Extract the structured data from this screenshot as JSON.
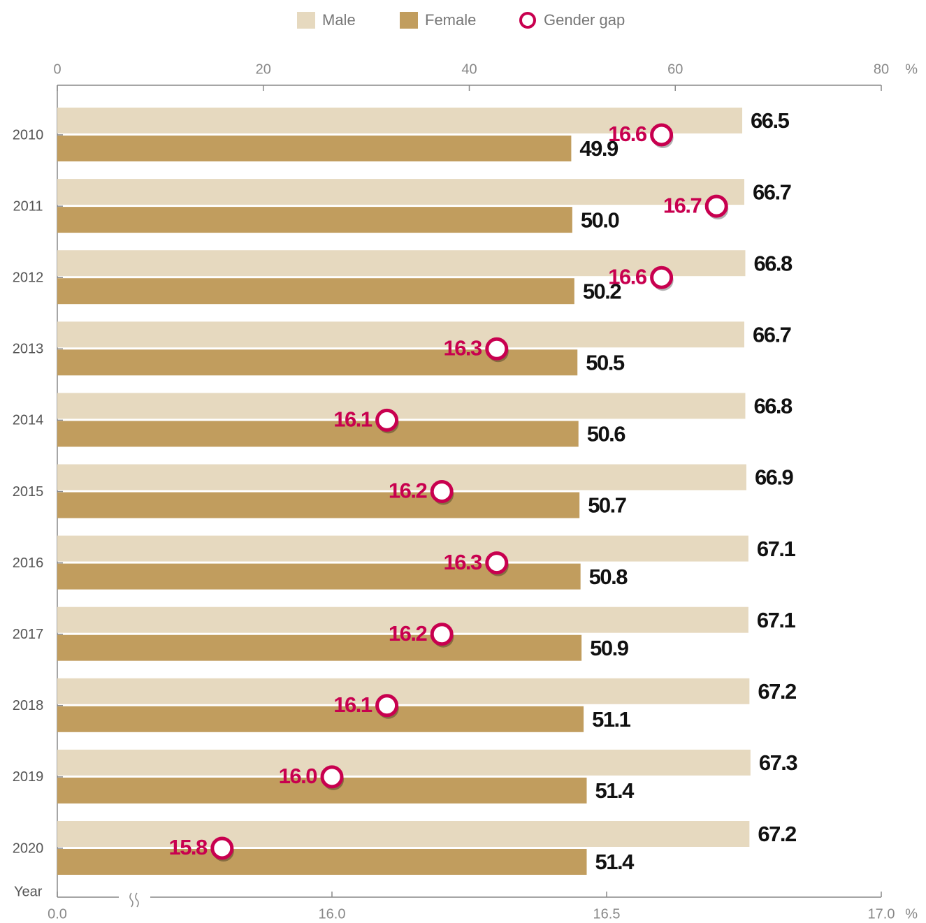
{
  "chart_data": {
    "type": "bar",
    "orientation": "horizontal",
    "categories": [
      "2010",
      "2011",
      "2012",
      "2013",
      "2014",
      "2015",
      "2016",
      "2017",
      "2018",
      "2019",
      "2020"
    ],
    "y_label": "Year",
    "series": [
      {
        "name": "Male",
        "color": "#e6d9bf",
        "axis": "x",
        "values": [
          66.5,
          66.7,
          66.8,
          66.7,
          66.8,
          66.9,
          67.1,
          67.1,
          67.2,
          67.3,
          67.2
        ],
        "value_labels": [
          "66.5",
          "66.7",
          "66.8",
          "66.7",
          "66.8",
          "66.9",
          "67.1",
          "67.1",
          "67.2",
          "67.3",
          "67.2"
        ]
      },
      {
        "name": "Female",
        "color": "#c19d5e",
        "axis": "x",
        "values": [
          49.9,
          50.0,
          50.2,
          50.5,
          50.6,
          50.7,
          50.8,
          50.9,
          51.1,
          51.4,
          51.4
        ],
        "value_labels": [
          "49.9",
          "50.0",
          "50.2",
          "50.5",
          "50.6",
          "50.7",
          "50.8",
          "50.9",
          "51.1",
          "51.4",
          "51.4"
        ]
      },
      {
        "name": "Gender gap",
        "color": "#c8004f",
        "axis": "x2",
        "marker": "circle",
        "values": [
          16.6,
          16.7,
          16.6,
          16.3,
          16.1,
          16.2,
          16.3,
          16.2,
          16.1,
          16.0,
          15.8
        ],
        "value_labels": [
          "16.6",
          "16.7",
          "16.6",
          "16.3",
          "16.1",
          "16.2",
          "16.3",
          "16.2",
          "16.1",
          "16.0",
          "15.8"
        ]
      }
    ],
    "xlim": [
      0,
      80
    ],
    "xticks": [
      0,
      20,
      40,
      60,
      80
    ],
    "x_unit": "%",
    "x2lim": [
      0,
      17
    ],
    "x2_break": [
      0,
      15.5
    ],
    "x2ticks": [
      {
        "value": 0,
        "label": "0.0"
      },
      {
        "value": 16,
        "label": "16.0"
      },
      {
        "value": 16.5,
        "label": "16.5"
      },
      {
        "value": 17,
        "label": "17.0"
      }
    ],
    "x2_unit": "%",
    "legend": "top"
  }
}
